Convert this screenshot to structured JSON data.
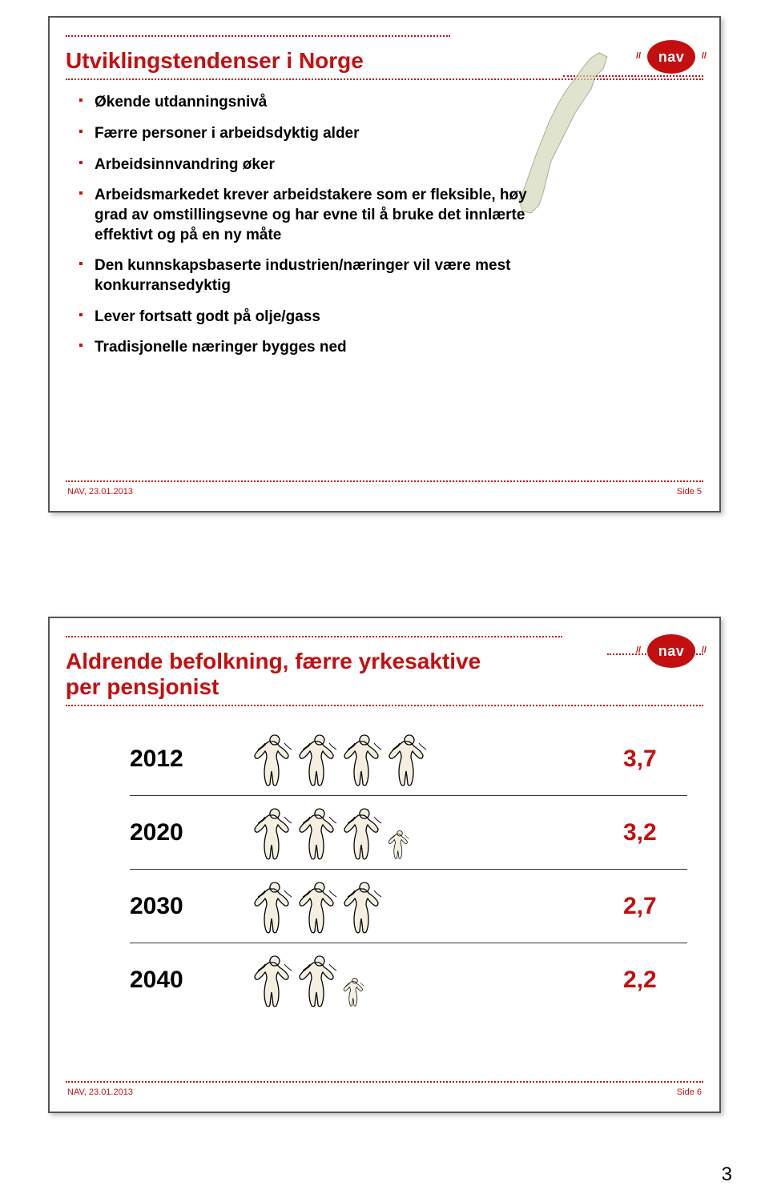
{
  "brand": {
    "logo_text": "nav",
    "accent_color": "#c40f11"
  },
  "slide1": {
    "title": "Utviklingstendenser i Norge",
    "bullets": [
      "Økende utdanningsnivå",
      "Færre personer i arbeidsdyktig alder",
      "Arbeidsinnvandring øker",
      "Arbeidsmarkedet krever arbeidstakere som er fleksible, høy grad av omstillingsevne og har evne til å bruke det innlærte effektivt og på en ny måte",
      "Den kunnskapsbaserte industrien/næringer vil være mest konkurransedyktig",
      "Lever fortsatt godt på olje/gass",
      "Tradisjonelle næringer bygges ned"
    ],
    "footer_date": "NAV, 23.01.2013",
    "footer_page": "Side 5"
  },
  "slide2": {
    "title": "Aldrende befolkning, færre yrkesaktive per pensjonist",
    "rows": [
      {
        "year": "2012",
        "figures_full": 4,
        "figures_small": 0,
        "value": "3,7"
      },
      {
        "year": "2020",
        "figures_full": 3,
        "figures_small": 1,
        "value": "3,2"
      },
      {
        "year": "2030",
        "figures_full": 3,
        "figures_small": 0,
        "value": "2,7"
      },
      {
        "year": "2040",
        "figures_full": 2,
        "figures_small": 1,
        "value": "2,2"
      }
    ],
    "footer_date": "NAV, 23.01.2013",
    "footer_page": "Side 6"
  },
  "page_number": "3",
  "styling": {
    "title_fontsize_pt": 21,
    "bullet_fontsize_pt": 14,
    "year_fontsize_pt": 22,
    "value_fontsize_pt": 22,
    "footer_fontsize_pt": 8,
    "background_color": "#ffffff",
    "text_color": "#000000",
    "dotted_line_color": "#c40f11",
    "slide_border_color": "#555555",
    "figure_outline": "#000000",
    "figure_fill": "#f4efe0"
  }
}
